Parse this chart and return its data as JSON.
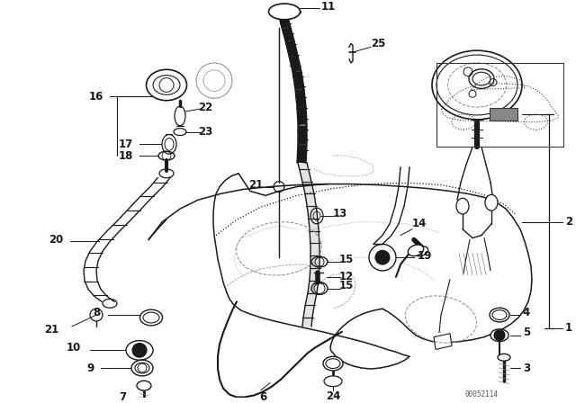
{
  "background_color": "#ffffff",
  "fig_width": 6.4,
  "fig_height": 4.48,
  "dpi": 100,
  "line_color": "#1a1a1a",
  "dash_color": "#888888",
  "label_fontsize": 8.0
}
